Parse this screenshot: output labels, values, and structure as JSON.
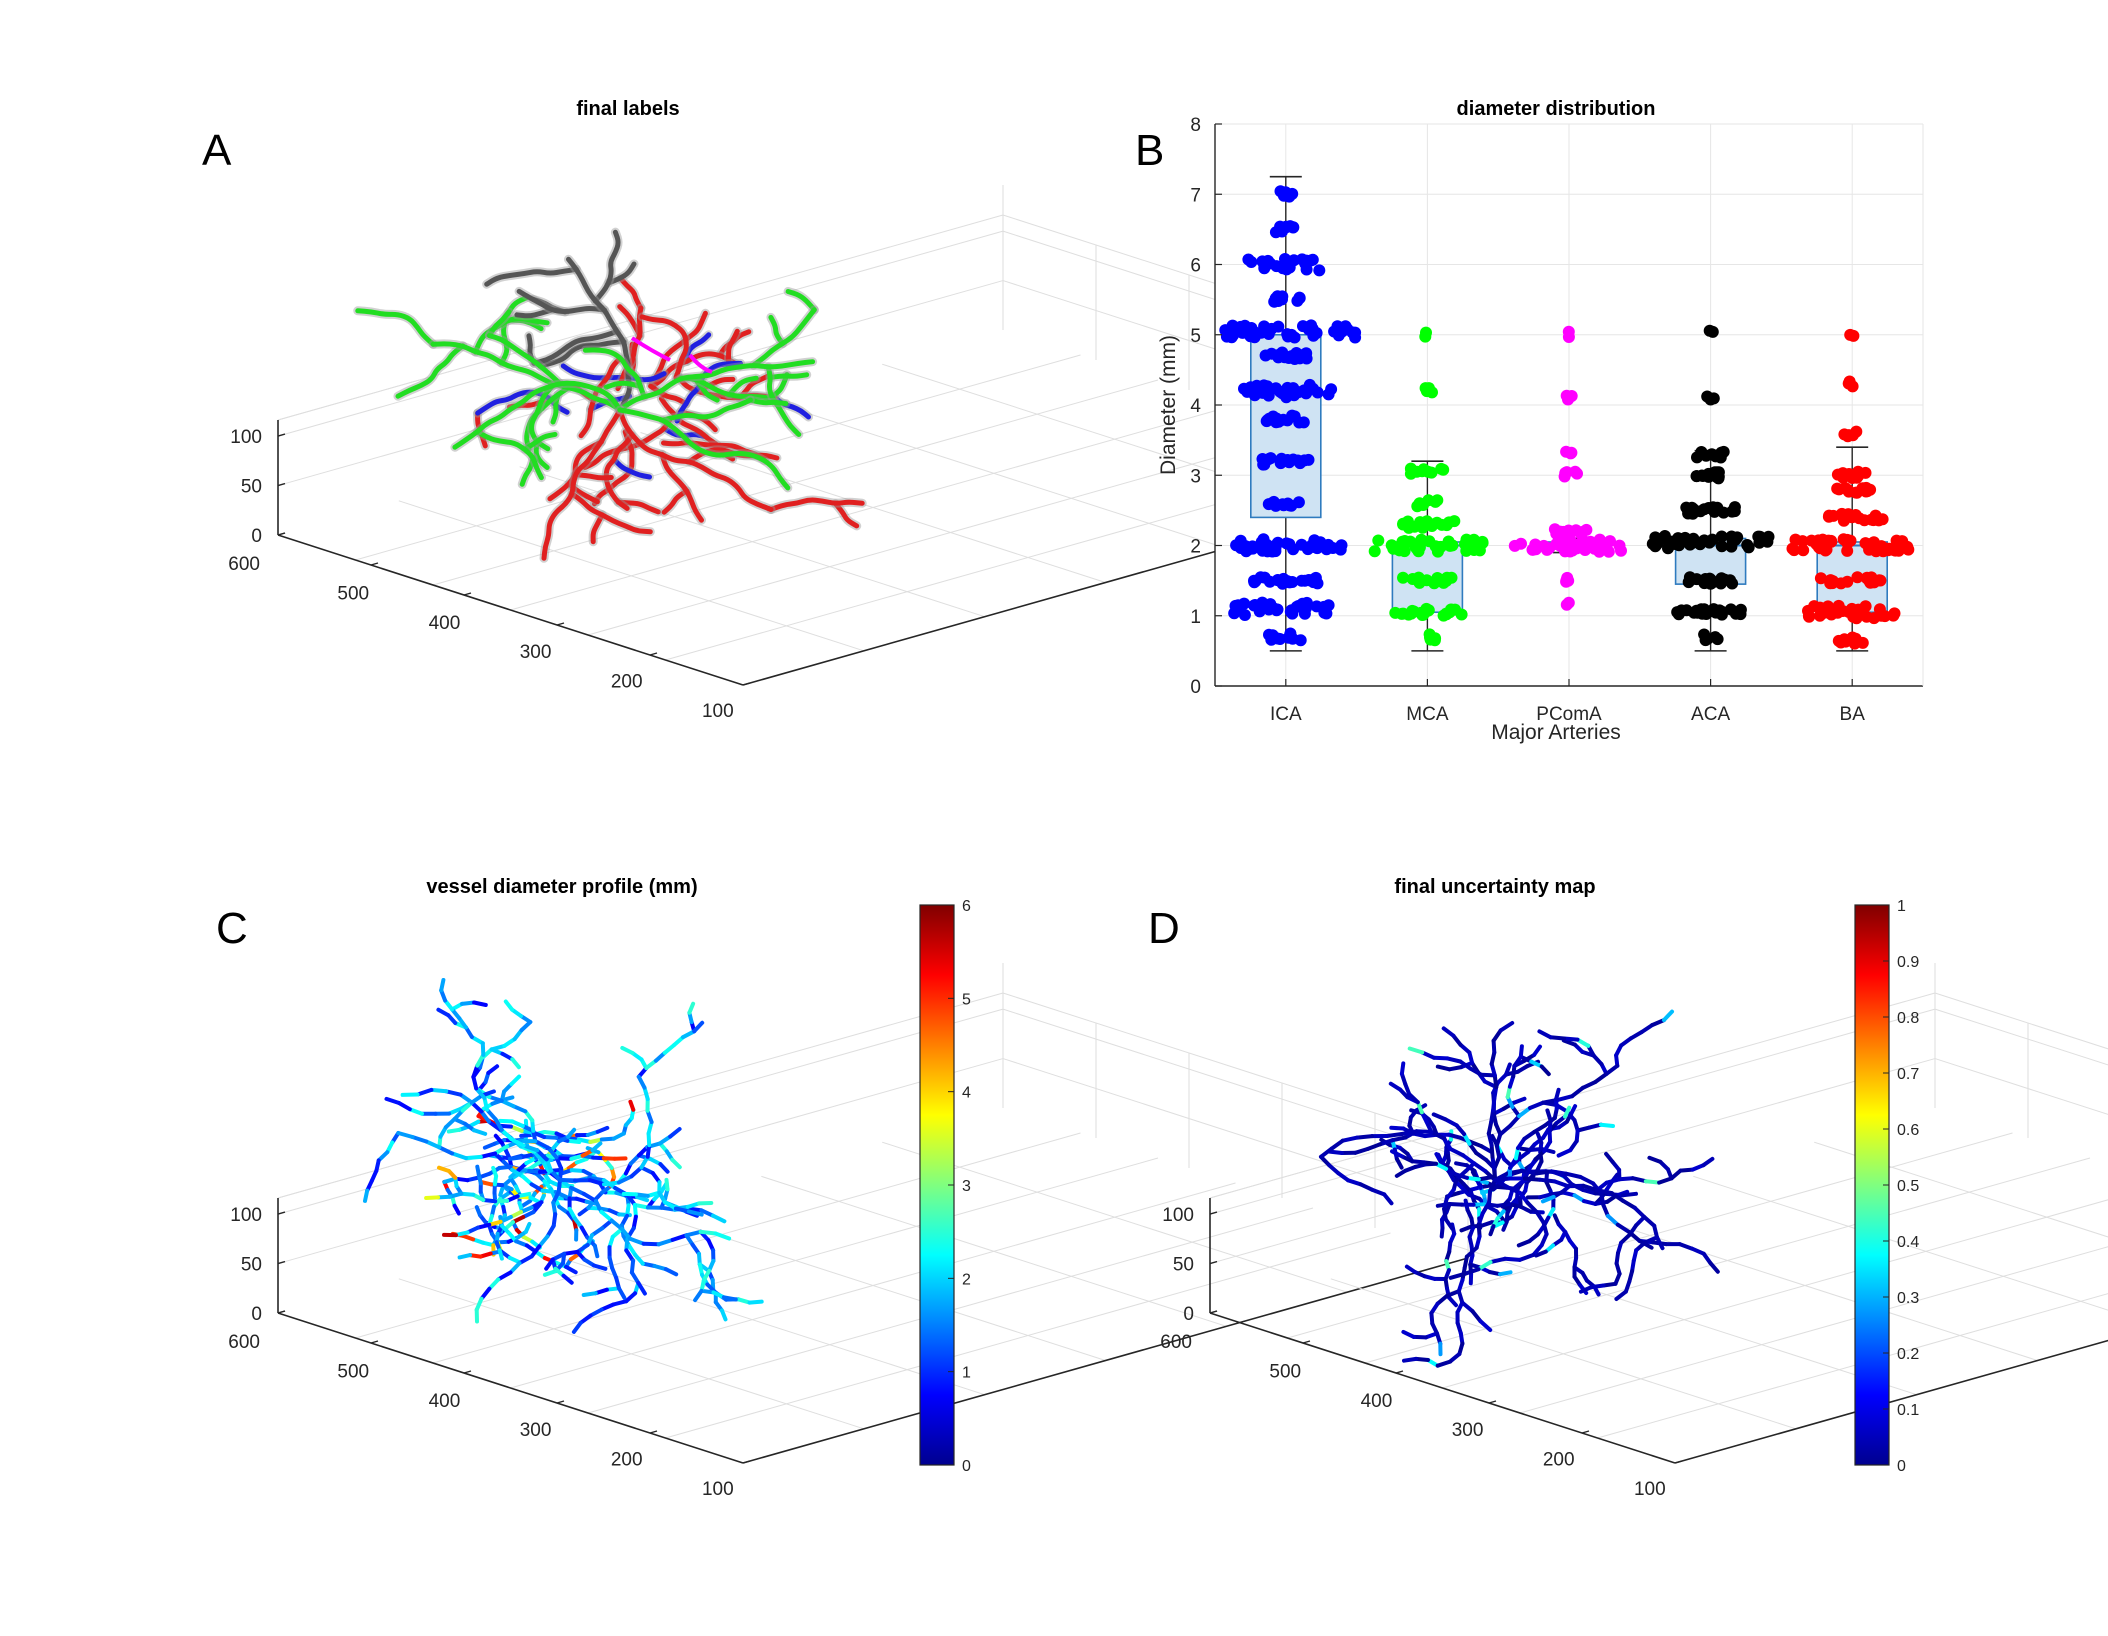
{
  "figure": {
    "panel_letters": [
      "A",
      "B",
      "C",
      "D"
    ]
  },
  "chart_data": [
    {
      "panel": "A",
      "type": "scatter",
      "title": "final labels",
      "z_ticks": [
        "100",
        "50",
        "0"
      ],
      "x_ticks": [
        "600",
        "500",
        "400",
        "300",
        "200",
        "100"
      ],
      "segments": [
        {
          "name": "ICA",
          "color": "#2020e0"
        },
        {
          "name": "MCA",
          "color": "#22dd22"
        },
        {
          "name": "PComA",
          "color": "#ff00ff"
        },
        {
          "name": "ACA",
          "color": "#555555"
        },
        {
          "name": "BA",
          "color": "#e02020"
        }
      ]
    },
    {
      "panel": "B",
      "type": "box",
      "title": "diameter distribution",
      "xlabel": "Major Arteries",
      "ylabel": "Diameter (mm)",
      "ylim": [
        0,
        8
      ],
      "yticks": [
        0,
        1,
        2,
        3,
        4,
        5,
        6,
        7,
        8
      ],
      "ytick_labels": [
        "0",
        "1",
        "2",
        "3",
        "4",
        "5",
        "6",
        "7",
        "8"
      ],
      "categories": [
        "ICA",
        "MCA",
        "PComA",
        "ACA",
        "BA"
      ],
      "series": [
        {
          "name": "ICA",
          "color": "#0000ff",
          "q1": 2.4,
          "median": 4.2,
          "q3": 5.0,
          "whisker_low": 0.5,
          "whisker_high": 7.25,
          "clusters": [
            [
              5.05,
              1.0
            ],
            [
              4.2,
              0.7
            ],
            [
              6.0,
              0.55
            ],
            [
              2.0,
              0.8
            ],
            [
              1.1,
              0.75
            ],
            [
              3.2,
              0.35
            ],
            [
              1.5,
              0.5
            ],
            [
              0.7,
              0.25
            ],
            [
              6.5,
              0.2
            ],
            [
              7.0,
              0.12
            ],
            [
              5.5,
              0.25
            ],
            [
              3.8,
              0.3
            ],
            [
              2.6,
              0.25
            ],
            [
              4.7,
              0.3
            ]
          ]
        },
        {
          "name": "MCA",
          "color": "#00ff00",
          "q1": 1.05,
          "median": 2.0,
          "q3": 2.05,
          "whisker_low": 0.5,
          "whisker_high": 3.2,
          "clusters": [
            [
              2.0,
              0.85
            ],
            [
              1.05,
              0.5
            ],
            [
              3.05,
              0.25
            ],
            [
              1.5,
              0.35
            ],
            [
              2.3,
              0.4
            ],
            [
              0.7,
              0.12
            ],
            [
              4.2,
              0.08
            ],
            [
              5.0,
              0.05
            ],
            [
              2.6,
              0.15
            ]
          ]
        },
        {
          "name": "PComA",
          "color": "#ff00ff",
          "q1": 1.95,
          "median": 2.0,
          "q3": 2.05,
          "whisker_low": 1.9,
          "whisker_high": 2.1,
          "clusters": [
            [
              2.0,
              0.8
            ],
            [
              3.0,
              0.12
            ],
            [
              1.5,
              0.08
            ],
            [
              3.3,
              0.06
            ],
            [
              4.1,
              0.06
            ],
            [
              5.0,
              0.04
            ],
            [
              1.15,
              0.04
            ],
            [
              2.2,
              0.25
            ]
          ]
        },
        {
          "name": "ACA",
          "color": "#000000",
          "q1": 1.45,
          "median": 2.0,
          "q3": 2.1,
          "whisker_low": 0.5,
          "whisker_high": 3.35,
          "clusters": [
            [
              2.05,
              0.85
            ],
            [
              1.05,
              0.5
            ],
            [
              3.0,
              0.3
            ],
            [
              1.5,
              0.35
            ],
            [
              2.5,
              0.35
            ],
            [
              0.7,
              0.12
            ],
            [
              4.1,
              0.06
            ],
            [
              5.05,
              0.04
            ],
            [
              3.3,
              0.2
            ]
          ]
        },
        {
          "name": "BA",
          "color": "#ff0000",
          "q1": 1.05,
          "median": 2.0,
          "q3": 2.05,
          "whisker_low": 0.5,
          "whisker_high": 3.4,
          "clusters": [
            [
              2.0,
              0.9
            ],
            [
              1.05,
              0.65
            ],
            [
              3.0,
              0.25
            ],
            [
              1.5,
              0.45
            ],
            [
              2.4,
              0.45
            ],
            [
              0.65,
              0.2
            ],
            [
              3.6,
              0.12
            ],
            [
              4.3,
              0.06
            ],
            [
              5.0,
              0.05
            ],
            [
              2.8,
              0.3
            ]
          ]
        }
      ]
    },
    {
      "panel": "C",
      "type": "scatter",
      "title": "vessel diameter profile (mm)",
      "z_ticks": [
        "100",
        "50",
        "0"
      ],
      "x_ticks": [
        "600",
        "500",
        "400",
        "300",
        "200",
        "100"
      ],
      "colorbar": {
        "min": 0,
        "max": 6,
        "ticks": [
          "0",
          "1",
          "2",
          "3",
          "4",
          "5",
          "6"
        ],
        "colormap": "jet"
      }
    },
    {
      "panel": "D",
      "type": "scatter",
      "title": "final uncertainty map",
      "z_ticks": [
        "100",
        "50",
        "0"
      ],
      "x_ticks": [
        "600",
        "500",
        "400",
        "300",
        "200",
        "100"
      ],
      "colorbar": {
        "min": 0,
        "max": 1,
        "ticks": [
          "0",
          "0.1",
          "0.2",
          "0.3",
          "0.4",
          "0.5",
          "0.6",
          "0.7",
          "0.8",
          "0.9",
          "1"
        ],
        "colormap": "jet"
      }
    }
  ]
}
